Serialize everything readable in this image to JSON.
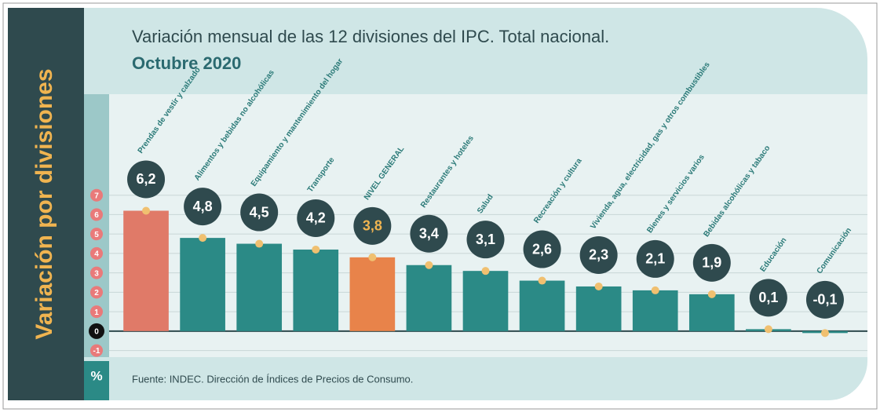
{
  "chart_data": {
    "type": "bar",
    "title": "Variación mensual de las 12 divisiones del IPC. Total nacional.",
    "subtitle": "Octubre 2020",
    "side_title": "Variación por divisiones",
    "y_unit": "%",
    "source": "Fuente: INDEC. Dirección de Índices de Precios de Consumo.",
    "categories": [
      "Prendas de vestir y calzado",
      "Alimentos y bebidas no alcohólicas",
      "Equipamiento y mantenimiento del hogar",
      "Transporte",
      "NIVEL GENERAL",
      "Restaurantes y hoteles",
      "Salud",
      "Recreación y cultura",
      "Vivienda, agua, electricidad, gas y otros combustibles",
      "Bienes y servicios varios",
      "Bebidas alcohólicas y tabaco",
      "Educación",
      "Comunicación"
    ],
    "values": [
      6.2,
      4.8,
      4.5,
      4.2,
      3.8,
      3.4,
      3.1,
      2.6,
      2.3,
      2.1,
      1.9,
      0.1,
      -0.1
    ],
    "value_labels": [
      "6,2",
      "4,8",
      "4,5",
      "4,2",
      "3,8",
      "3,4",
      "3,1",
      "2,6",
      "2,3",
      "2,1",
      "1,9",
      "0,1",
      "-0,1"
    ],
    "colors": [
      "#e07a68",
      "#2b8a86",
      "#2b8a86",
      "#2b8a86",
      "#e8834a",
      "#2b8a86",
      "#2b8a86",
      "#2b8a86",
      "#2b8a86",
      "#2b8a86",
      "#2b8a86",
      "#2b8a86",
      "#2b8a86"
    ],
    "ylim": [
      -1.34,
      12
    ],
    "yticks": [
      -1,
      0,
      1,
      2,
      3,
      4,
      5,
      6,
      7
    ],
    "grid": true
  }
}
